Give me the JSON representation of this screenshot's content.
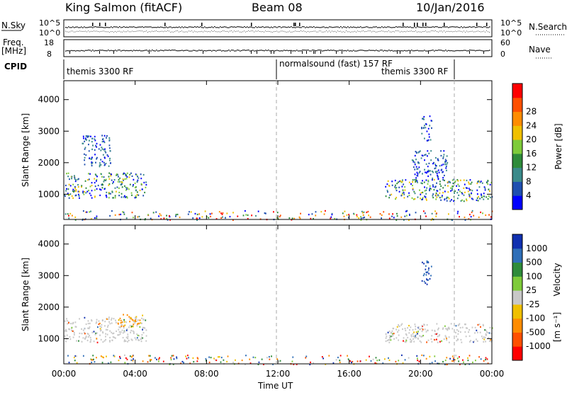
{
  "header": {
    "station": "King Salmon (fitACF)",
    "beam": "Beam 08",
    "date": "10/Jan/2016"
  },
  "panels": {
    "nsky": {
      "label": "N.Sky",
      "right_label": "N.Search",
      "left_ticks": [
        "10^5",
        "10^0"
      ],
      "right_ticks": [
        "10^5",
        "10^0"
      ]
    },
    "freq": {
      "label": "Freq.",
      "unit": "[MHz]",
      "left_ticks": [
        "18",
        "8"
      ],
      "right_label": "Nave",
      "right_ticks": [
        "60",
        "0"
      ]
    },
    "cpid": {
      "label": "CPID",
      "segments": [
        "themis 3300 RF",
        "normalsound (fast) 157 RF",
        "themis 3300 RF"
      ]
    }
  },
  "x_axis": {
    "label": "Time UT",
    "ticks": [
      "00:00",
      "04:00",
      "08:00",
      "12:00",
      "16:00",
      "20:00",
      "00:00"
    ]
  },
  "power_colorbar": {
    "label": "Power [dB]",
    "ticks": [
      "4",
      "8",
      "12",
      "16",
      "20",
      "24",
      "28"
    ],
    "colors": [
      "#0000ff",
      "#1f4fb0",
      "#3a8a8a",
      "#2e8b3a",
      "#7ecb3a",
      "#f0c000",
      "#ff8c00",
      "#ff5000",
      "#ff0000"
    ]
  },
  "velocity_colorbar": {
    "label_main": "Velocity",
    "label_unit": "[m s⁻¹]",
    "ticks": [
      "1000",
      "500",
      "100",
      "25",
      "-25",
      "-100",
      "-500",
      "-1000"
    ],
    "colors": [
      "#1030b0",
      "#2f6fb8",
      "#2e8b3a",
      "#7ecb3a",
      "#c8c8c8",
      "#f0c000",
      "#ff8c00",
      "#ff5000",
      "#ff0000"
    ]
  },
  "chart_data": [
    {
      "type": "heatmap",
      "title": "Power",
      "ylabel": "Slant Range [km]",
      "xlabel": "",
      "ylim": [
        200,
        4600
      ],
      "xlim": [
        0,
        24
      ],
      "y_ticks": [
        1000,
        2000,
        3000,
        4000
      ],
      "clusters": [
        {
          "x0": 0.0,
          "x1": 4.6,
          "y0": 900,
          "y1": 1700,
          "level": "mixed"
        },
        {
          "x0": 1.0,
          "x1": 2.6,
          "y0": 1900,
          "y1": 2900,
          "level": "low"
        },
        {
          "x0": 18.0,
          "x1": 24.0,
          "y0": 800,
          "y1": 1500,
          "level": "mixed"
        },
        {
          "x0": 19.5,
          "x1": 21.5,
          "y0": 1500,
          "y1": 2400,
          "level": "low"
        },
        {
          "x0": 20.0,
          "x1": 20.6,
          "y0": 2700,
          "y1": 3500,
          "level": "low"
        },
        {
          "x0": 0.0,
          "x1": 24.0,
          "y0": 200,
          "y1": 500,
          "level": "ground"
        }
      ]
    },
    {
      "type": "heatmap",
      "title": "Velocity",
      "ylabel": "Slant Range [km]",
      "xlabel": "Time UT",
      "ylim": [
        200,
        4600
      ],
      "xlim": [
        0,
        24
      ],
      "y_ticks": [
        1000,
        2000,
        3000,
        4000
      ],
      "clusters": [
        {
          "x0": 0.0,
          "x1": 4.6,
          "y0": 900,
          "y1": 1700,
          "level": "near-zero"
        },
        {
          "x0": 3.0,
          "x1": 4.4,
          "y0": 1400,
          "y1": 1800,
          "level": "negative"
        },
        {
          "x0": 18.0,
          "x1": 24.0,
          "y0": 900,
          "y1": 1500,
          "level": "near-zero"
        },
        {
          "x0": 20.0,
          "x1": 20.6,
          "y0": 2700,
          "y1": 3500,
          "level": "positive"
        },
        {
          "x0": 0.0,
          "x1": 24.0,
          "y0": 200,
          "y1": 500,
          "level": "mixed"
        }
      ]
    }
  ]
}
